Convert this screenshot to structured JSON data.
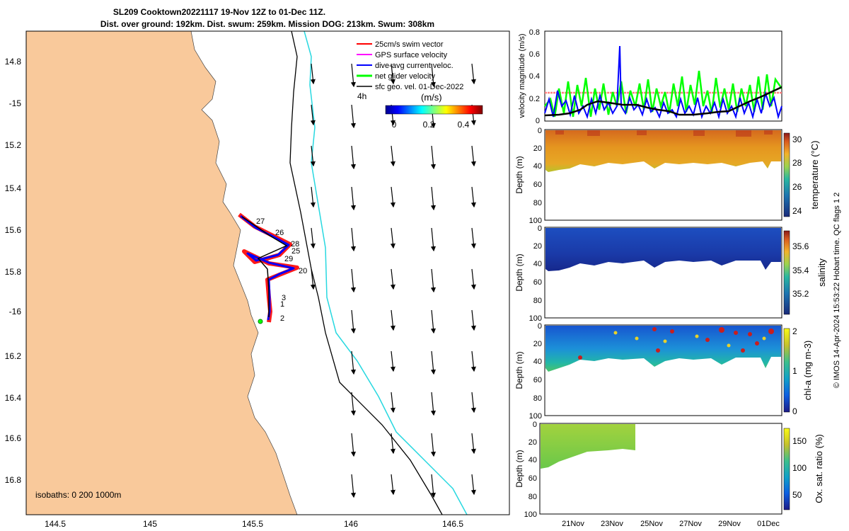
{
  "title": {
    "line1": "SL209 Cooktown20221117 19-Nov 12Z to 01-Dec 11Z.",
    "line2": "Dist. over ground: 192km. Dist. swum: 259km. Mission DOG: 213km. Swum: 308km"
  },
  "map": {
    "lon_ticks": [
      "144.5",
      "145",
      "145.5",
      "146",
      "146.5"
    ],
    "lat_ticks": [
      "14.8",
      "-15",
      "15.2",
      "15.4",
      "15.6",
      "15.8",
      "-16",
      "16.2",
      "16.4",
      "16.6",
      "16.8"
    ],
    "legend": [
      {
        "label": "25cm/s swim vector",
        "color": "#ff0000"
      },
      {
        "label": "GPS surface velocity",
        "color": "#ff00ff"
      },
      {
        "label": "dive-avg current veloc.",
        "color": "#0000ff"
      },
      {
        "label": "net glider velocity",
        "color": "#00ff00"
      },
      {
        "label": "sfc geo. vel. 01-Dec-2022",
        "color": "#000000"
      }
    ],
    "interval_label": "4h",
    "colorbar": {
      "unit": "(m/s)",
      "ticks": [
        "0",
        "0.2",
        "0.4"
      ]
    },
    "waypoint_labels": [
      "27",
      "26",
      "28",
      "25",
      "29",
      "20",
      "3",
      "1",
      "2"
    ],
    "isobaths_label": "isobaths: 0   200  1000m",
    "colors": {
      "land": "#f9c99b",
      "isobath_200": "#000000",
      "isobath_1000": "#28d8e0"
    }
  },
  "velocity_panel": {
    "ylabel": "velocity magnitude (m/s)",
    "yticks": [
      "0",
      "0.2",
      "0.4",
      "0.6",
      "0.8"
    ]
  },
  "section_panels": [
    {
      "colorbar_label": "temperature (°C)",
      "colorbar_ticks": [
        "30",
        "28",
        "26",
        "24"
      ]
    },
    {
      "colorbar_label": "salinity",
      "colorbar_ticks": [
        "35.6",
        "35.4",
        "35.2"
      ]
    },
    {
      "colorbar_label": "chl-a (mg m-3)",
      "colorbar_ticks": [
        "2",
        "1",
        "0"
      ]
    },
    {
      "colorbar_label": "Ox. sat. ratio (%)",
      "colorbar_ticks": [
        "150",
        "100",
        "50"
      ]
    }
  ],
  "depth_label": "Depth (m)",
  "depth_ticks": [
    "0",
    "20",
    "40",
    "60",
    "80",
    "100"
  ],
  "time_ticks": [
    "21Nov",
    "23Nov",
    "25Nov",
    "27Nov",
    "29Nov",
    "01Dec"
  ],
  "credit": "© IMOS 14-Apr-2024 15:53:22 Hobart time. QC flags 1  2",
  "chart_data": {
    "type": "line",
    "title": "velocity magnitude",
    "ylabel": "velocity magnitude (m/s)",
    "ylim": [
      0,
      0.8
    ],
    "series": [
      {
        "name": "25cm/s swim vector",
        "values": [
          0.25,
          0.25
        ]
      },
      {
        "name": "net glider velocity",
        "approx_range": [
          0.02,
          0.45
        ]
      },
      {
        "name": "dive-avg current veloc.",
        "approx_range": [
          0.0,
          0.67
        ]
      },
      {
        "name": "sfc geo. vel.",
        "approx_range": [
          0.05,
          0.3
        ]
      }
    ]
  }
}
